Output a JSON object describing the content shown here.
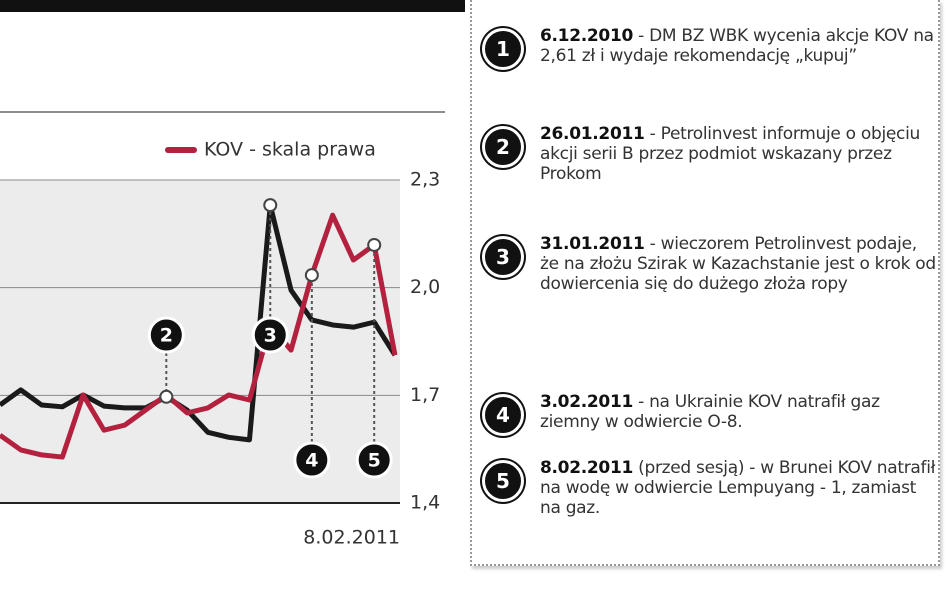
{
  "chart_data": {
    "type": "line",
    "categories": [
      null,
      null,
      null,
      null,
      null,
      null,
      null,
      null,
      null,
      null,
      null,
      null,
      null,
      null,
      null,
      null,
      null,
      null,
      null,
      "8.02.2011"
    ],
    "series": [
      {
        "color": "#1a1a1a",
        "values": [
          1.673,
          1.715,
          1.673,
          1.668,
          1.701,
          1.67,
          1.665,
          1.665,
          1.696,
          1.659,
          1.597,
          1.583,
          1.576,
          2.23,
          1.993,
          1.91,
          1.896,
          1.89,
          1.904,
          1.812
        ]
      },
      {
        "name": "KOV - skala prawa",
        "color": "#b3213f",
        "values": [
          1.589,
          1.548,
          1.534,
          1.528,
          1.701,
          1.603,
          1.617,
          1.659,
          1.701,
          1.651,
          1.665,
          1.701,
          1.687,
          1.896,
          1.826,
          2.035,
          2.202,
          2.077,
          2.119,
          1.812
        ]
      }
    ],
    "ylim": [
      1.4,
      2.3
    ],
    "yticks": [
      {
        "value": 1.4,
        "label": "1,4"
      },
      {
        "value": 1.7,
        "label": "1,7"
      },
      {
        "value": 2.0,
        "label": "2,0"
      },
      {
        "value": 2.3,
        "label": "2,3"
      }
    ],
    "grid": true
  },
  "events": [
    {
      "number": "1",
      "date": "6.12.2010",
      "text": "- DM BZ WBK wycenia akcje KOV na 2,61 zł i wydaje rekomendację „kupuj”"
    },
    {
      "number": "2",
      "date": "26.01.2011",
      "text": "- Petrolinvest informuje o objęciu akcji serii B przez podmiot wskazany przez Prokom"
    },
    {
      "number": "3",
      "date": "31.01.2011",
      "text": "- wieczorem Petrolinvest podaje, że na złożu Szirak w Kazachstanie jest o krok od dowiercenia się do dużego złoża ropy"
    },
    {
      "number": "4",
      "date": "3.02.2011",
      "text": "- na Ukrainie KOV natrafił gaz ziemny w odwiercie O-8."
    },
    {
      "number": "5",
      "date": "8.02.2011",
      "text": "(przed sesją) - w Brunei KOV natrafił na wodę w odwiercie Lempuyang - 1, zamiast na gaz."
    }
  ]
}
